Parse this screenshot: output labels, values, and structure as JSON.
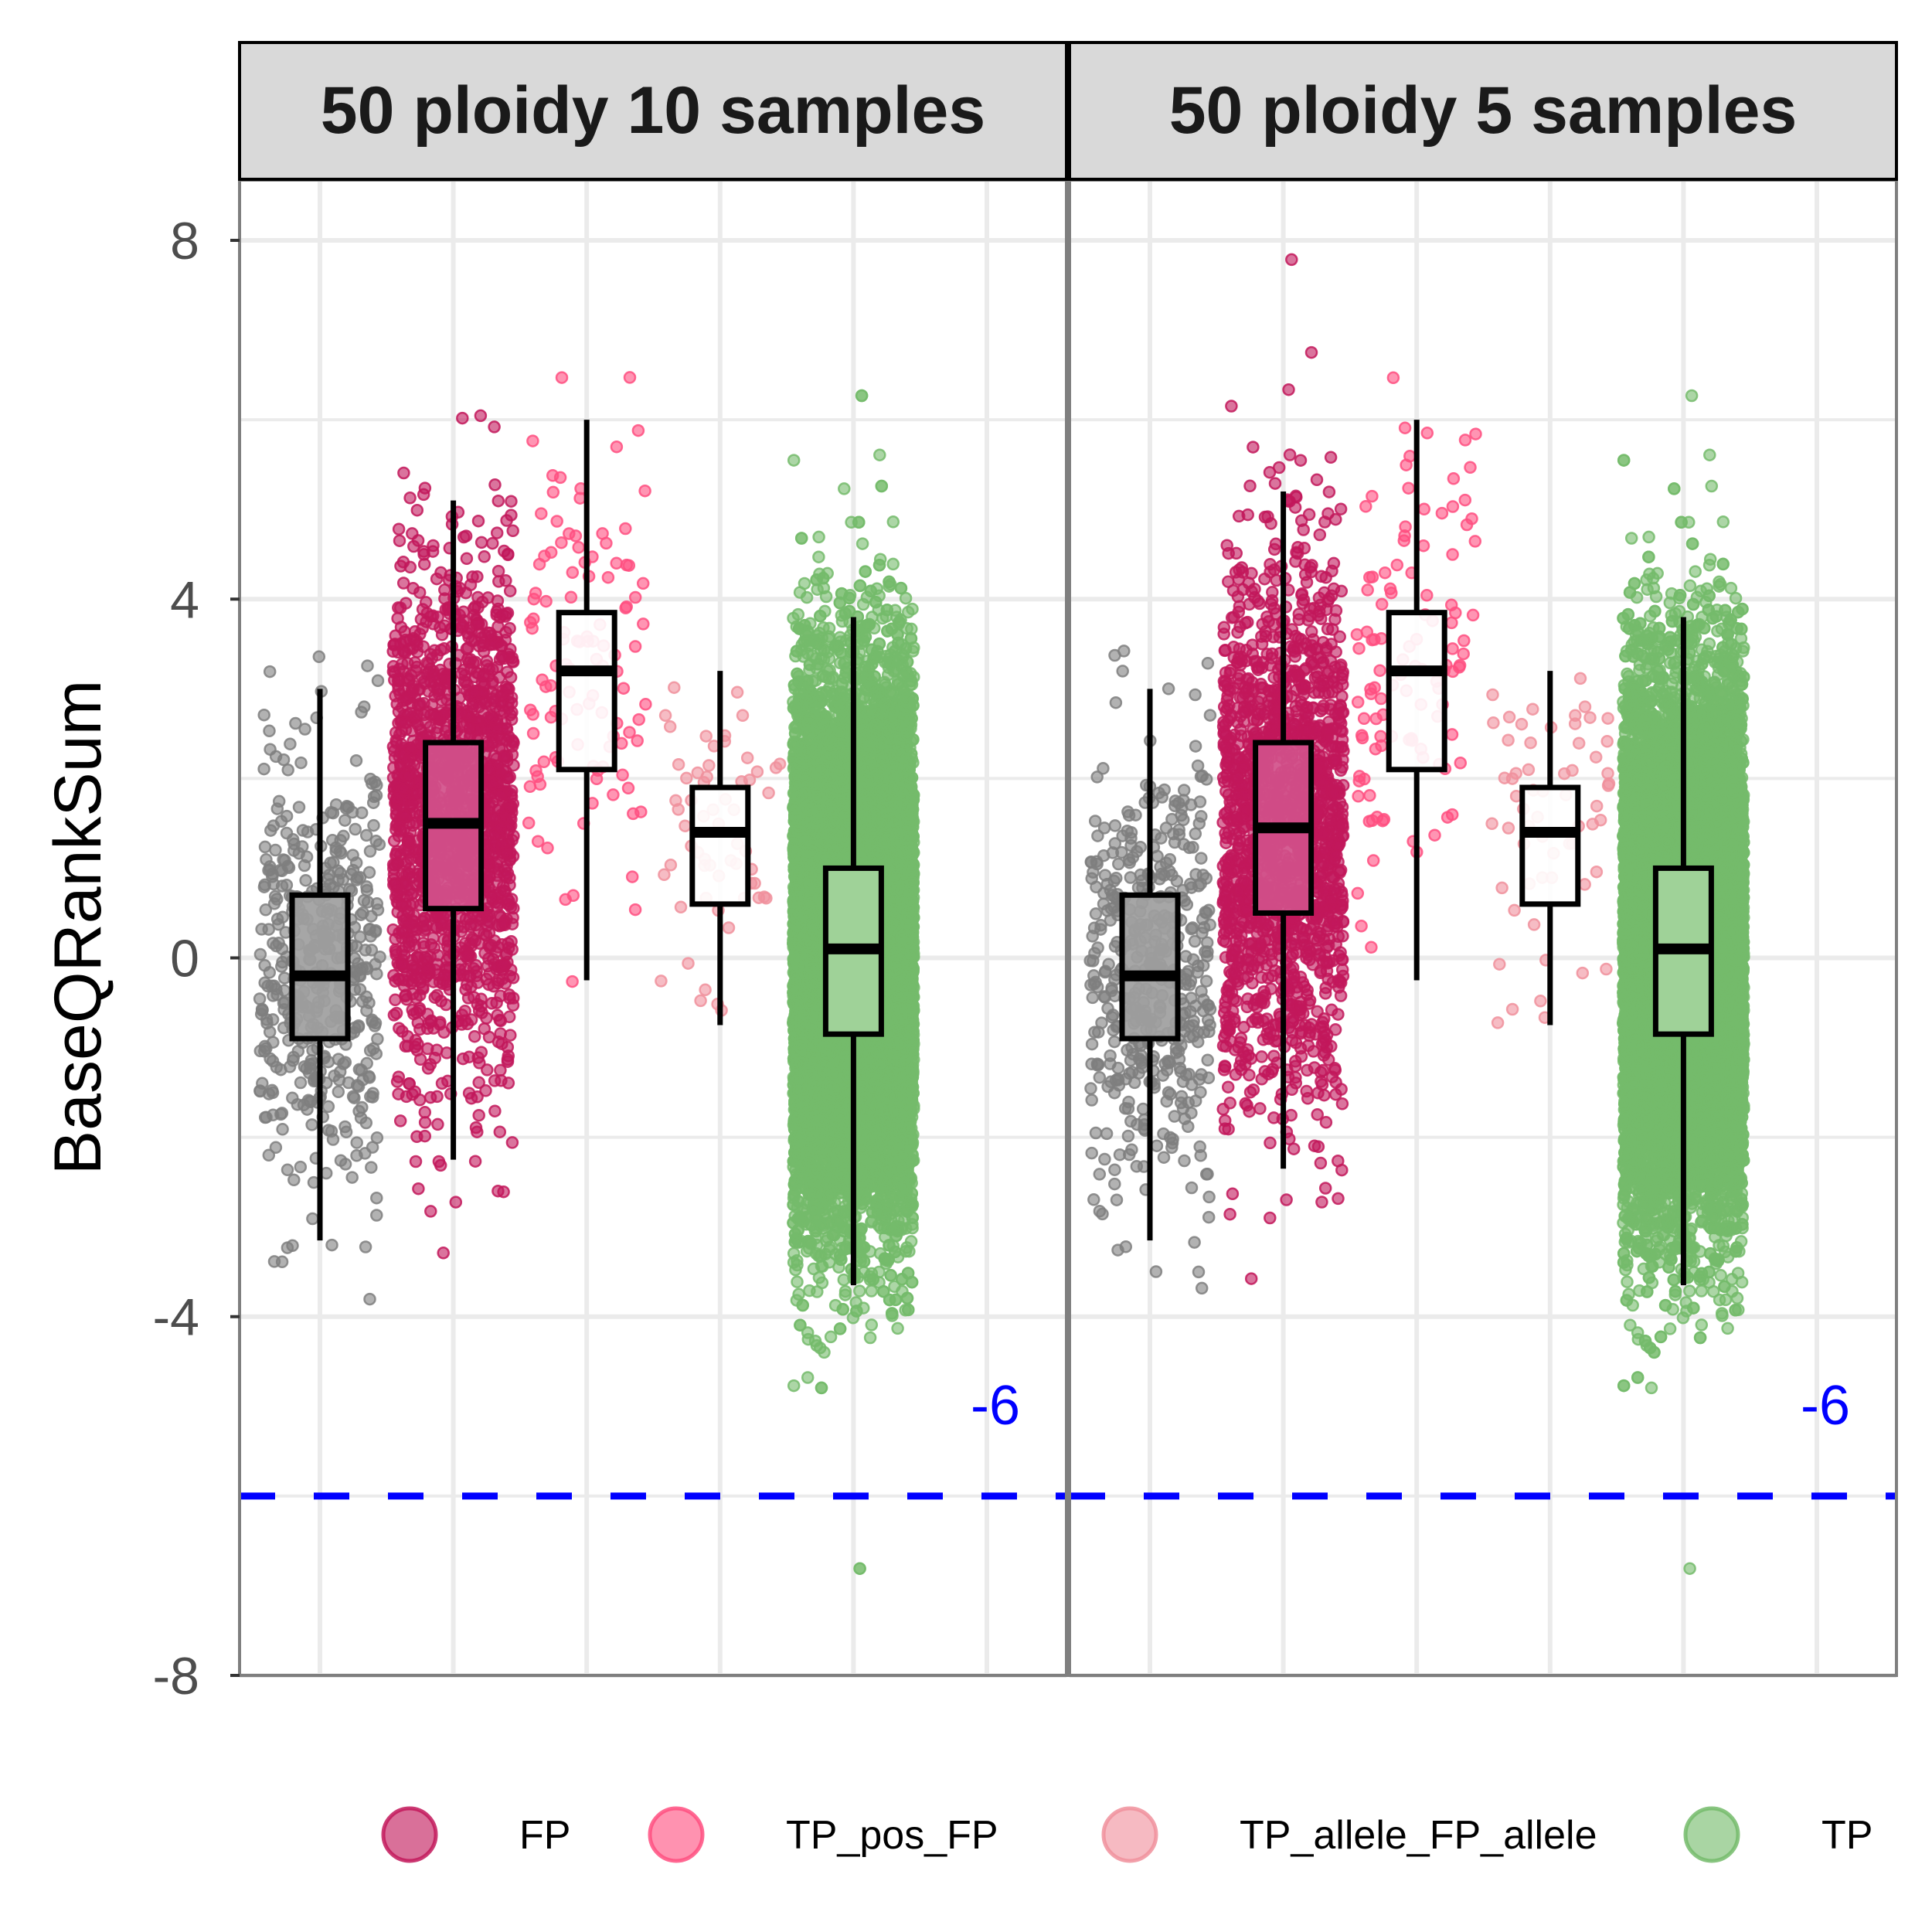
{
  "chart_data": {
    "type": "box",
    "ylabel": "BaseQRankSum",
    "xlabel": "",
    "ylim": [
      -8,
      8.9
    ],
    "yticks": [
      "-8",
      "-4",
      "0",
      "4",
      "8"
    ],
    "grid": true,
    "legend_position": "bottom",
    "threshold": {
      "value": -6,
      "label": "-6",
      "color": "#0000ff",
      "style": "dashed"
    },
    "categories": [
      "(unlabeled grey)",
      "FP",
      "TP_pos_FP",
      "TP_allele_FP_allele",
      "TP"
    ],
    "colors": {
      "unlabeled": "#7f7f7f",
      "FP": "#c2185b",
      "TP_pos_FP": "#ff4f80",
      "TP_allele_FP_allele": "#f0909c",
      "TP": "#74bb6b"
    },
    "legend": [
      {
        "label": "FP",
        "color": "#c2185b"
      },
      {
        "label": "TP_pos_FP",
        "color": "#ff4f80"
      },
      {
        "label": "TP_allele_FP_allele",
        "color": "#f0909c"
      },
      {
        "label": "TP",
        "color": "#74bb6b"
      }
    ],
    "panels": [
      {
        "title": "50 ploidy 10 samples",
        "boxes": [
          {
            "group": "unlabeled",
            "x": 1,
            "q1": -0.9,
            "median": -0.2,
            "q3": 0.7,
            "whisker_low": -3.15,
            "whisker_high": 3.0,
            "fill": "#9e9e9e",
            "range": [
              -4.4,
              3.5
            ],
            "n_points": 450
          },
          {
            "group": "FP",
            "x": 2,
            "q1": 0.55,
            "median": 1.5,
            "q3": 2.4,
            "whisker_low": -2.25,
            "whisker_high": 5.1,
            "fill": "#d1508a",
            "range": [
              -3.9,
              7.9
            ],
            "n_points": 1700
          },
          {
            "group": "TP_pos_FP",
            "x": 3,
            "q1": 2.1,
            "median": 3.2,
            "q3": 3.85,
            "whisker_low": -0.25,
            "whisker_high": 6.0,
            "fill": "#ffffff",
            "range": [
              -0.3,
              6.5
            ],
            "n_points": 110
          },
          {
            "group": "TP_allele_FP_allele",
            "x": 4,
            "q1": 0.6,
            "median": 1.4,
            "q3": 1.9,
            "whisker_low": -0.75,
            "whisker_high": 3.2,
            "fill": "#ffffff",
            "range": [
              -0.8,
              3.2
            ],
            "n_points": 60
          },
          {
            "group": "TP",
            "x": 5,
            "q1": -0.85,
            "median": 0.1,
            "q3": 1.0,
            "whisker_low": -3.65,
            "whisker_high": 3.8,
            "fill": "#a3d49c",
            "range": [
              -7.2,
              6.5
            ],
            "n_points": 14000
          }
        ]
      },
      {
        "title": "50 ploidy 5 samples",
        "boxes": [
          {
            "group": "unlabeled",
            "x": 1,
            "q1": -0.9,
            "median": -0.2,
            "q3": 0.7,
            "whisker_low": -3.15,
            "whisker_high": 3.0,
            "fill": "#9e9e9e",
            "range": [
              -4.4,
              3.5
            ],
            "n_points": 450
          },
          {
            "group": "FP",
            "x": 2,
            "q1": 0.5,
            "median": 1.45,
            "q3": 2.4,
            "whisker_low": -2.35,
            "whisker_high": 5.2,
            "fill": "#d1508a",
            "range": [
              -3.9,
              7.9
            ],
            "n_points": 1700
          },
          {
            "group": "TP_pos_FP",
            "x": 3,
            "q1": 2.1,
            "median": 3.2,
            "q3": 3.85,
            "whisker_low": -0.25,
            "whisker_high": 6.0,
            "fill": "#ffffff",
            "range": [
              -0.3,
              6.5
            ],
            "n_points": 110
          },
          {
            "group": "TP_allele_FP_allele",
            "x": 4,
            "q1": 0.6,
            "median": 1.4,
            "q3": 1.9,
            "whisker_low": -0.75,
            "whisker_high": 3.2,
            "fill": "#ffffff",
            "range": [
              -0.8,
              3.2
            ],
            "n_points": 60
          },
          {
            "group": "TP",
            "x": 5,
            "q1": -0.85,
            "median": 0.1,
            "q3": 1.0,
            "whisker_low": -3.65,
            "whisker_high": 3.8,
            "fill": "#a3d49c",
            "range": [
              -7.2,
              6.5
            ],
            "n_points": 14000
          }
        ]
      }
    ]
  }
}
